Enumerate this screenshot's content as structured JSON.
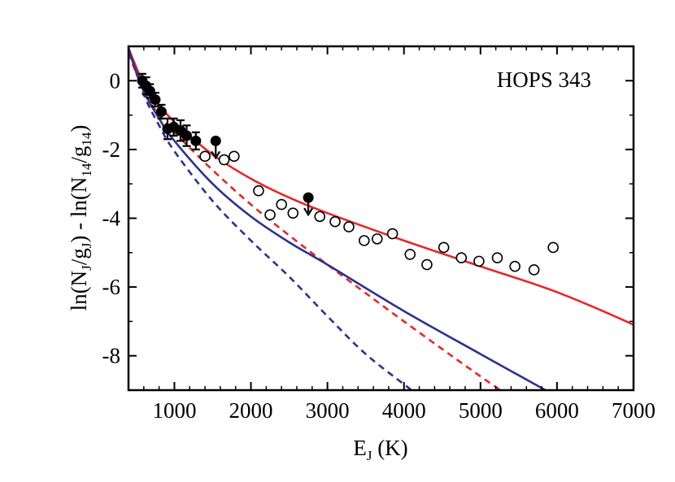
{
  "chart_data": {
    "type": "scatter",
    "annotation": "HOPS 343",
    "xlabel": {
      "main": "E",
      "sub": "J",
      "rest": " (K)"
    },
    "ylabel": {
      "parts": [
        {
          "t": "ln(N",
          "sub": false
        },
        {
          "t": "J",
          "sub": true
        },
        {
          "t": "/g",
          "sub": false
        },
        {
          "t": "J",
          "sub": true
        },
        {
          "t": ") - ln(N",
          "sub": false
        },
        {
          "t": "14",
          "sub": true
        },
        {
          "t": "/g",
          "sub": false
        },
        {
          "t": "14",
          "sub": true
        },
        {
          "t": ")",
          "sub": false
        }
      ]
    },
    "xlim": [
      400,
      7000
    ],
    "ylim": [
      -9,
      1
    ],
    "x_ticks": [
      1000,
      2000,
      3000,
      4000,
      5000,
      6000,
      7000
    ],
    "x_tick_labels": [
      "1000",
      "2000",
      "3000",
      "4000",
      "5000",
      "6000",
      "7000"
    ],
    "y_ticks": [
      0,
      -2,
      -4,
      -6,
      -8
    ],
    "y_tick_labels": [
      "0",
      "-2",
      "-4",
      "-6",
      "-8"
    ],
    "grid": false,
    "colors": {
      "red": "#e8262a",
      "blue": "#2d3192",
      "black": "#000000"
    },
    "series": [
      {
        "marker": "filled-circle",
        "x": [
          580,
          630,
          680,
          750,
          830,
          910,
          990,
          1080,
          1160,
          1280
        ],
        "y": [
          0.0,
          -0.15,
          -0.3,
          -0.55,
          -0.9,
          -1.4,
          -1.35,
          -1.45,
          -1.6,
          -1.75
        ],
        "yerr": [
          0.2,
          0.25,
          0.2,
          0.2,
          0.2,
          0.3,
          0.25,
          0.3,
          0.3,
          0.25
        ]
      },
      {
        "marker": "upper-limit",
        "x": [
          1540,
          2750
        ],
        "y": [
          -1.75,
          -3.4
        ]
      },
      {
        "marker": "open-circle",
        "x": [
          1400,
          1650,
          1780,
          2100,
          2250,
          2400,
          2550,
          2900,
          3100,
          3280,
          3480,
          3650,
          3850,
          4080,
          4300,
          4520,
          4750,
          4980,
          5220,
          5450,
          5700,
          5950
        ],
        "y": [
          -2.2,
          -2.3,
          -2.2,
          -3.2,
          -3.9,
          -3.6,
          -3.85,
          -3.95,
          -4.1,
          -4.25,
          -4.65,
          -4.6,
          -4.45,
          -5.05,
          -5.35,
          -4.85,
          -5.15,
          -5.25,
          -5.15,
          -5.4,
          -5.5,
          -4.85
        ]
      },
      {
        "marker": "line",
        "style": "solid",
        "color": "red",
        "x": [
          400,
          600,
          800,
          1000,
          1500,
          2000,
          2500,
          3000,
          4000,
          5000,
          6000,
          7000,
          7300
        ],
        "y": [
          0.95,
          -0.1,
          -0.7,
          -1.2,
          -2.15,
          -2.85,
          -3.4,
          -3.85,
          -4.65,
          -5.4,
          -6.15,
          -7.1,
          -7.5
        ]
      },
      {
        "marker": "line",
        "style": "dashed",
        "color": "red",
        "x": [
          400,
          600,
          800,
          1000,
          1500,
          2000,
          2500,
          3000,
          4000,
          5000,
          5400
        ],
        "y": [
          0.8,
          -0.3,
          -1.0,
          -1.5,
          -2.6,
          -3.6,
          -4.5,
          -5.35,
          -7.0,
          -8.6,
          -9.2
        ]
      },
      {
        "marker": "line",
        "style": "solid",
        "color": "blue",
        "x": [
          400,
          600,
          800,
          1000,
          1500,
          2000,
          2500,
          3000,
          4000,
          5000,
          5850
        ],
        "y": [
          0.9,
          -0.3,
          -1.1,
          -1.75,
          -3.0,
          -3.95,
          -4.7,
          -5.35,
          -6.7,
          -7.95,
          -9.0
        ]
      },
      {
        "marker": "line",
        "style": "dashed",
        "color": "blue",
        "x": [
          400,
          600,
          800,
          1000,
          1500,
          2000,
          2500,
          3000,
          3500,
          4100
        ],
        "y": [
          0.95,
          -0.4,
          -1.3,
          -2.05,
          -3.5,
          -4.65,
          -5.7,
          -6.85,
          -7.95,
          -9.0
        ]
      }
    ]
  }
}
